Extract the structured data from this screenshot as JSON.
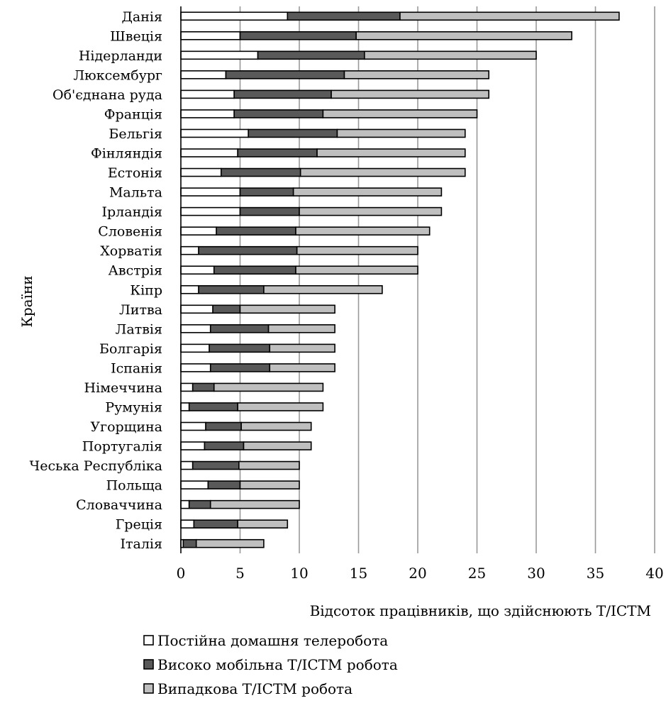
{
  "chart_data": {
    "type": "bar",
    "orientation": "horizontal",
    "stacked": true,
    "title": "",
    "xlabel": "Відсоток працівників, що здійснюють Т/ІСТМ",
    "ylabel": "Країни",
    "xlim": [
      0,
      40
    ],
    "xticks": [
      "0",
      "5",
      "10",
      "15",
      "20",
      "25",
      "30",
      "35",
      "40"
    ],
    "grid": "vertical",
    "legend_position": "bottom",
    "categories": [
      "Данія",
      "Швеція",
      "Нідерланди",
      "Люксембург",
      "Об'єднана руда",
      "Франція",
      "Бельгія",
      "Фінляндія",
      "Естонія",
      "Мальта",
      "Ірландія",
      "Словенія",
      "Хорватія",
      "Австрія",
      "Кіпр",
      "Литва",
      "Латвія",
      "Болгарія",
      "Іспанія",
      "Німеччина",
      "Румунія",
      "Угорщина",
      "Португалія",
      "Чеська Республіка",
      "Польща",
      "Словаччина",
      "Греція",
      "Італія"
    ],
    "series": [
      {
        "name": "Постійна домашня телеробота",
        "color": "#ffffff",
        "values": [
          9,
          5,
          6.5,
          3.8,
          4.5,
          4.5,
          5.7,
          4.8,
          3.4,
          5,
          5,
          3,
          1.5,
          2.8,
          1.5,
          2.7,
          2.5,
          2.4,
          2.5,
          1,
          0.7,
          2.1,
          2,
          1,
          2.3,
          0.7,
          1.1,
          0.2
        ]
      },
      {
        "name": "Високо мобільна Т/ІСТМ робота",
        "color": "#595959",
        "values": [
          9.5,
          9.8,
          9,
          10,
          8.2,
          7.5,
          7.5,
          6.7,
          6.7,
          4.5,
          5,
          6.7,
          8.3,
          6.9,
          5.5,
          2.3,
          4.9,
          5.1,
          5,
          1.8,
          4.1,
          3,
          3.3,
          3.9,
          2.7,
          1.8,
          3.7,
          1.1
        ]
      },
      {
        "name": "Випадкова Т/ІСТМ робота",
        "color": "#bfbfbf",
        "values": [
          18.5,
          18.2,
          14.5,
          12.2,
          13.3,
          13,
          10.8,
          12.5,
          13.9,
          12.5,
          12,
          11.3,
          10.2,
          10.3,
          10,
          8,
          5.6,
          5.5,
          5.5,
          9.2,
          7.2,
          5.9,
          5.7,
          5.1,
          5,
          7.5,
          4.2,
          5.7
        ]
      }
    ]
  }
}
